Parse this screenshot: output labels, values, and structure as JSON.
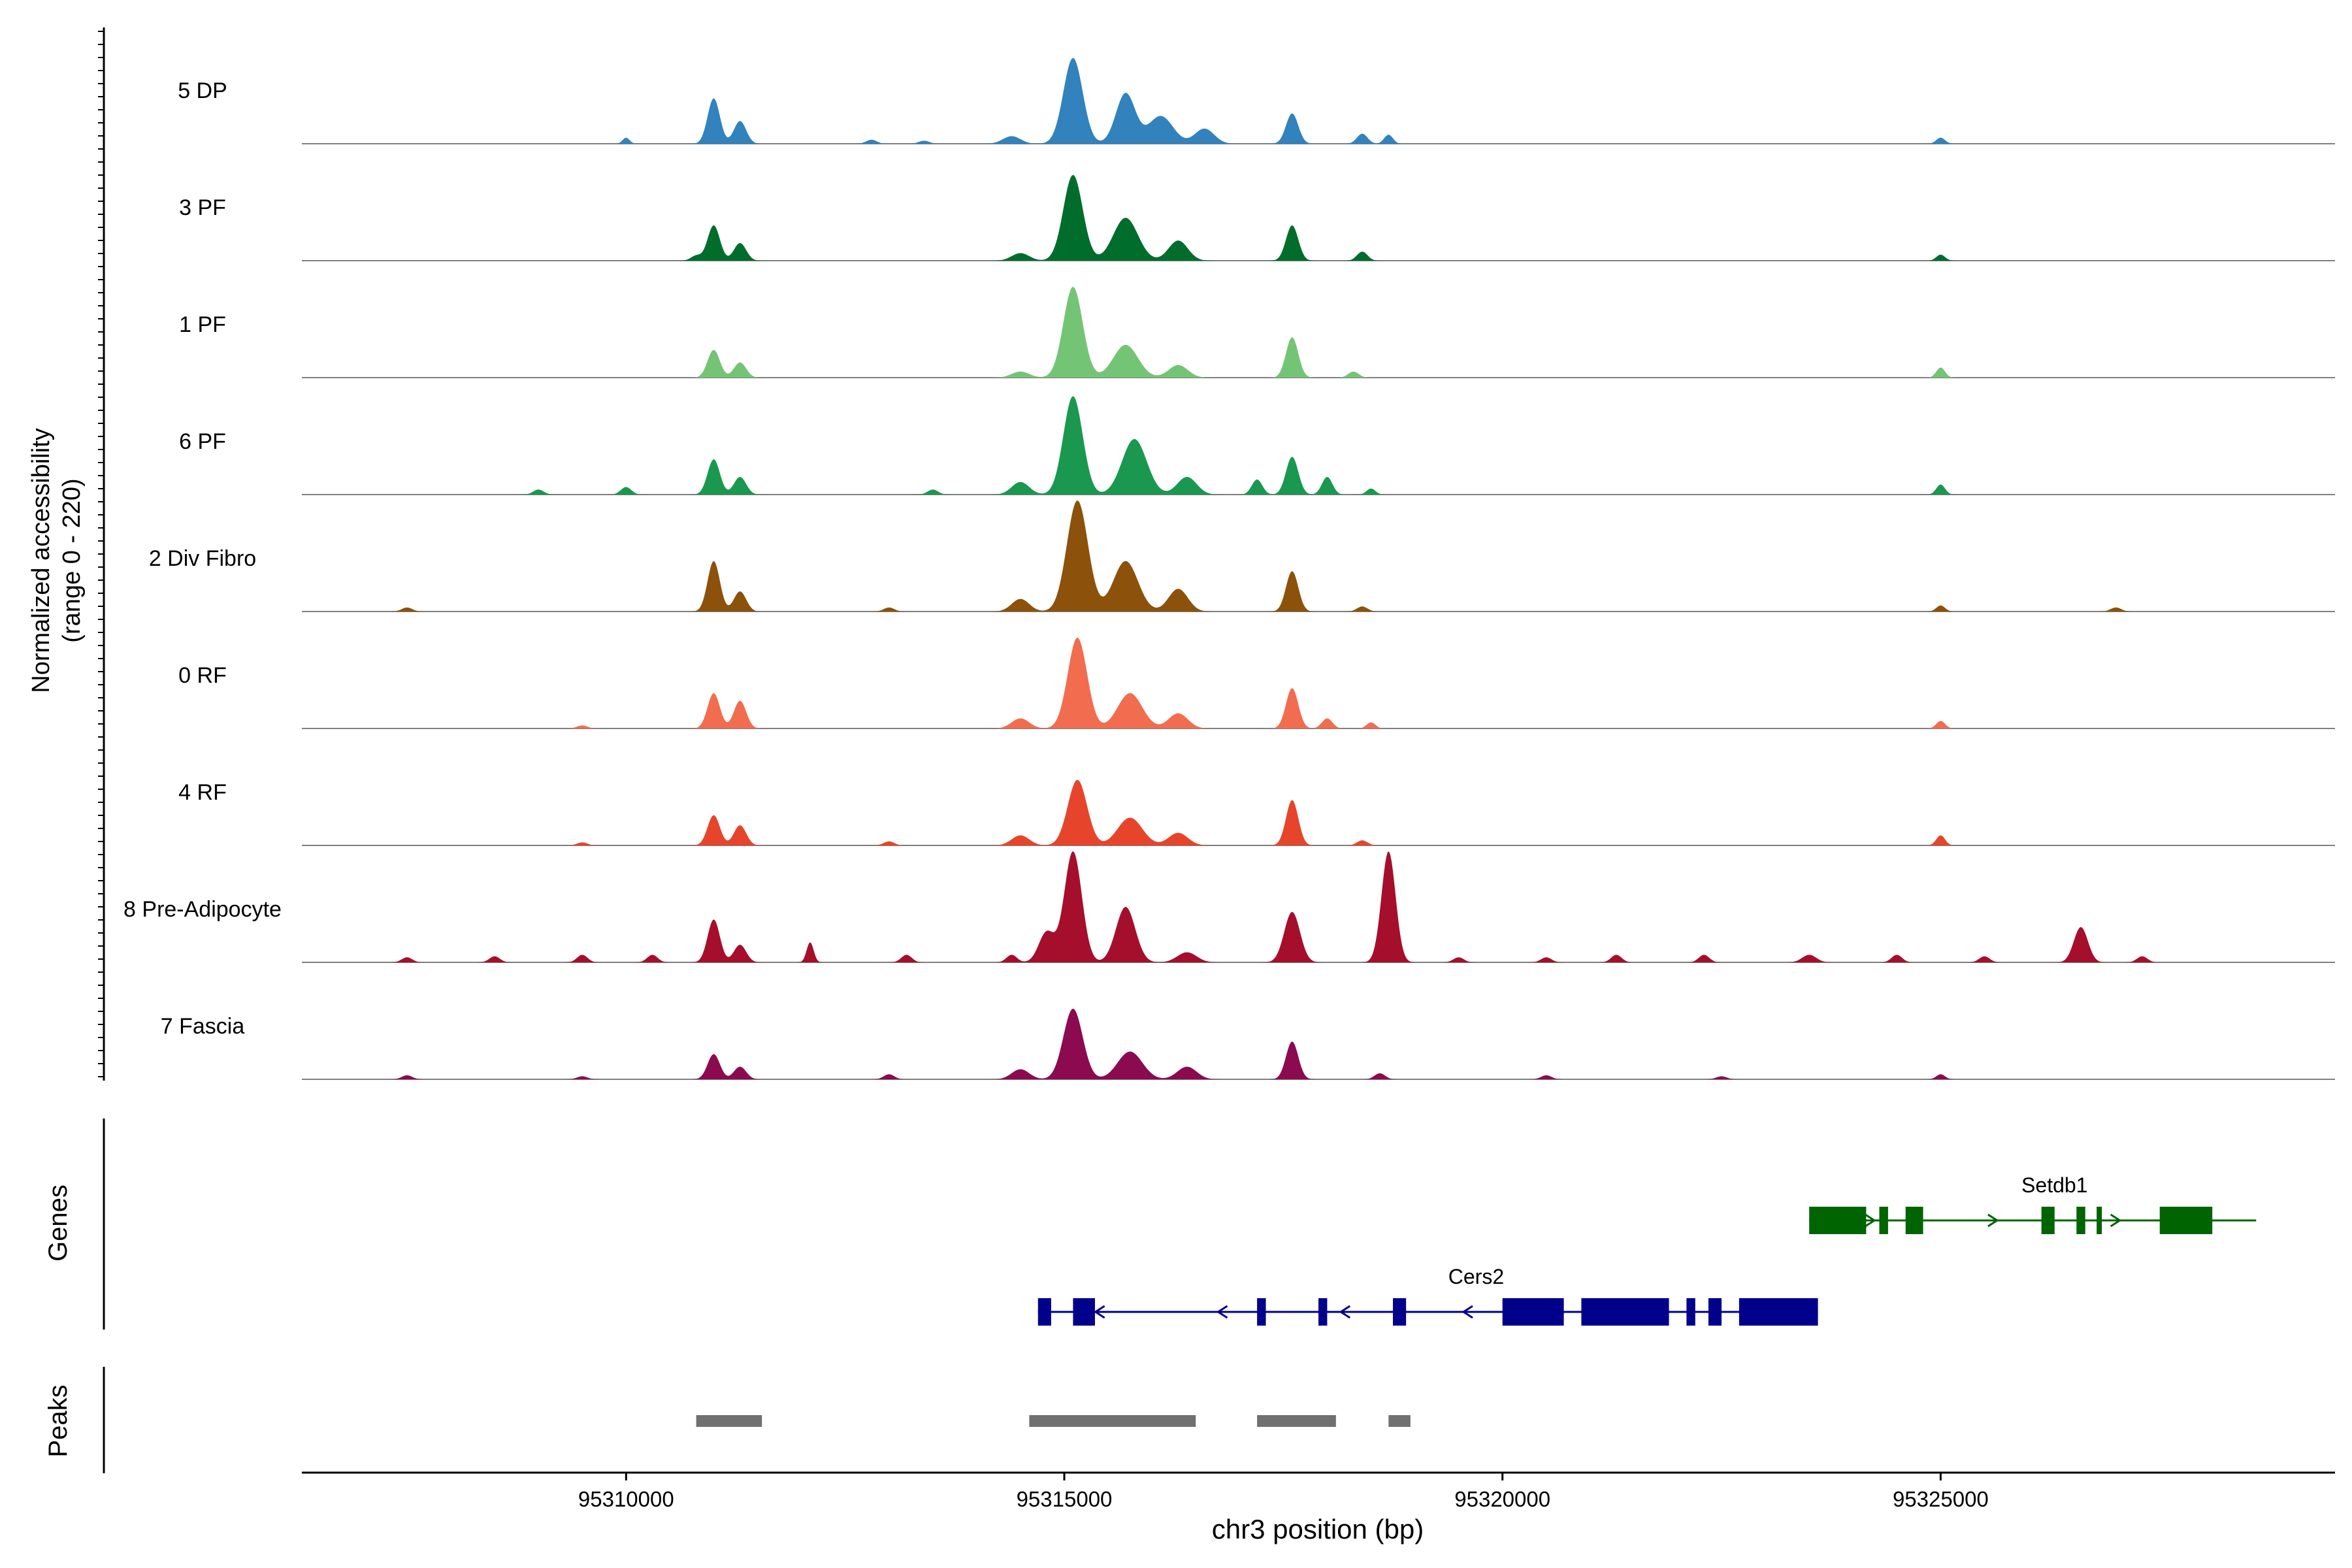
{
  "chart_data": {
    "type": "area",
    "title": "",
    "ylabel_line1": "Normalized accessibility",
    "ylabel_line2": "(range 0 - 220)",
    "yrange": [
      0,
      220
    ],
    "xlabel": "chr3 position (bp)",
    "xlim": [
      95306300,
      95329500
    ],
    "x_ticks": [
      95310000,
      95315000,
      95320000,
      95325000
    ],
    "x_tick_labels": [
      "95310000",
      "95315000",
      "95320000",
      "95325000"
    ],
    "track_labels": {
      "genes": "Genes",
      "peaks": "Peaks"
    },
    "series": [
      {
        "name": "5 DP",
        "color": "#3182BD",
        "peaks": [
          [
            95310000,
            12,
            40
          ],
          [
            95311000,
            90,
            70
          ],
          [
            95311300,
            45,
            70
          ],
          [
            95312800,
            8,
            60
          ],
          [
            95313400,
            6,
            60
          ],
          [
            95314400,
            15,
            100
          ],
          [
            95315100,
            170,
            110
          ],
          [
            95315700,
            100,
            110
          ],
          [
            95316100,
            55,
            140
          ],
          [
            95316600,
            30,
            110
          ],
          [
            95317600,
            60,
            70
          ],
          [
            95318400,
            20,
            60
          ],
          [
            95318700,
            18,
            50
          ],
          [
            95325000,
            12,
            50
          ]
        ]
      },
      {
        "name": "3 PF",
        "color": "#006D2C",
        "peaks": [
          [
            95310800,
            10,
            60
          ],
          [
            95311000,
            70,
            70
          ],
          [
            95311300,
            35,
            70
          ],
          [
            95314500,
            15,
            100
          ],
          [
            95315100,
            170,
            110
          ],
          [
            95315700,
            85,
            140
          ],
          [
            95316300,
            40,
            110
          ],
          [
            95317600,
            70,
            70
          ],
          [
            95318400,
            18,
            60
          ],
          [
            95325000,
            12,
            50
          ]
        ]
      },
      {
        "name": "1 PF",
        "color": "#74C476",
        "peaks": [
          [
            95311000,
            55,
            70
          ],
          [
            95311300,
            30,
            70
          ],
          [
            95314500,
            12,
            100
          ],
          [
            95315100,
            180,
            110
          ],
          [
            95315700,
            65,
            140
          ],
          [
            95316300,
            25,
            110
          ],
          [
            95317600,
            80,
            70
          ],
          [
            95318300,
            12,
            60
          ],
          [
            95325000,
            20,
            50
          ]
        ]
      },
      {
        "name": "6 PF",
        "color": "#1A9850",
        "peaks": [
          [
            95309000,
            10,
            60
          ],
          [
            95310000,
            15,
            60
          ],
          [
            95311000,
            70,
            70
          ],
          [
            95311300,
            35,
            70
          ],
          [
            95313500,
            10,
            60
          ],
          [
            95314500,
            25,
            100
          ],
          [
            95315100,
            195,
            110
          ],
          [
            95315800,
            110,
            140
          ],
          [
            95316400,
            35,
            110
          ],
          [
            95317200,
            30,
            60
          ],
          [
            95317600,
            75,
            70
          ],
          [
            95318000,
            35,
            60
          ],
          [
            95318500,
            12,
            50
          ],
          [
            95325000,
            20,
            50
          ]
        ]
      },
      {
        "name": "2 Div Fibro",
        "color": "#8C510A",
        "peaks": [
          [
            95307500,
            8,
            60
          ],
          [
            95311000,
            100,
            70
          ],
          [
            95311300,
            40,
            70
          ],
          [
            95313000,
            8,
            60
          ],
          [
            95314500,
            25,
            100
          ],
          [
            95315150,
            220,
            120
          ],
          [
            95315700,
            100,
            140
          ],
          [
            95316300,
            45,
            110
          ],
          [
            95317600,
            80,
            70
          ],
          [
            95318400,
            10,
            60
          ],
          [
            95325000,
            12,
            50
          ],
          [
            95327000,
            8,
            60
          ]
        ]
      },
      {
        "name": "0 RF",
        "color": "#F26C4F",
        "peaks": [
          [
            95309500,
            6,
            60
          ],
          [
            95311000,
            70,
            70
          ],
          [
            95311300,
            55,
            70
          ],
          [
            95314500,
            20,
            100
          ],
          [
            95315150,
            180,
            110
          ],
          [
            95315750,
            70,
            140
          ],
          [
            95316300,
            30,
            110
          ],
          [
            95317600,
            80,
            70
          ],
          [
            95318000,
            20,
            60
          ],
          [
            95318500,
            12,
            50
          ],
          [
            95325000,
            15,
            50
          ]
        ]
      },
      {
        "name": "4 RF",
        "color": "#E6452B",
        "peaks": [
          [
            95309500,
            6,
            60
          ],
          [
            95311000,
            60,
            70
          ],
          [
            95311300,
            40,
            70
          ],
          [
            95313000,
            8,
            60
          ],
          [
            95314500,
            20,
            100
          ],
          [
            95315150,
            130,
            110
          ],
          [
            95315750,
            55,
            140
          ],
          [
            95316300,
            25,
            110
          ],
          [
            95317600,
            90,
            70
          ],
          [
            95318400,
            10,
            60
          ],
          [
            95325000,
            20,
            50
          ]
        ]
      },
      {
        "name": "8 Pre-Adipocyte",
        "color": "#A50F2C",
        "peaks": [
          [
            95307500,
            10,
            60
          ],
          [
            95308500,
            12,
            60
          ],
          [
            95309500,
            15,
            60
          ],
          [
            95310300,
            15,
            60
          ],
          [
            95311000,
            85,
            70
          ],
          [
            95311300,
            35,
            70
          ],
          [
            95312100,
            40,
            40
          ],
          [
            95313200,
            15,
            60
          ],
          [
            95314400,
            15,
            60
          ],
          [
            95314800,
            60,
            90
          ],
          [
            95315100,
            220,
            100
          ],
          [
            95315700,
            110,
            110
          ],
          [
            95316400,
            20,
            110
          ],
          [
            95317600,
            100,
            90
          ],
          [
            95318700,
            220,
            80
          ],
          [
            95319500,
            10,
            60
          ],
          [
            95320500,
            10,
            60
          ],
          [
            95321300,
            15,
            60
          ],
          [
            95322300,
            15,
            60
          ],
          [
            95323500,
            15,
            80
          ],
          [
            95324500,
            15,
            60
          ],
          [
            95325500,
            12,
            60
          ],
          [
            95326600,
            70,
            80
          ],
          [
            95327300,
            12,
            60
          ]
        ]
      },
      {
        "name": "7 Fascia",
        "color": "#8B0A50",
        "peaks": [
          [
            95307500,
            8,
            60
          ],
          [
            95309500,
            6,
            60
          ],
          [
            95311000,
            50,
            70
          ],
          [
            95311300,
            25,
            70
          ],
          [
            95313000,
            10,
            60
          ],
          [
            95314500,
            20,
            100
          ],
          [
            95315100,
            140,
            110
          ],
          [
            95315750,
            55,
            140
          ],
          [
            95316400,
            25,
            110
          ],
          [
            95317600,
            75,
            70
          ],
          [
            95318600,
            12,
            60
          ],
          [
            95320500,
            8,
            60
          ],
          [
            95322500,
            6,
            60
          ],
          [
            95325000,
            10,
            50
          ]
        ]
      }
    ],
    "genes": [
      {
        "name": "Setdb1",
        "strand": "+",
        "color": "#006400",
        "start": 95323500,
        "end": 95328600,
        "exons": [
          [
            95323500,
            95324150
          ],
          [
            95324300,
            95324400
          ],
          [
            95324600,
            95324800
          ],
          [
            95326150,
            95326300
          ],
          [
            95326550,
            95326650
          ],
          [
            95326780,
            95326800
          ],
          [
            95327500,
            95328100
          ]
        ]
      },
      {
        "name": "Cers2",
        "strand": "-",
        "color": "#00008B",
        "start": 95314700,
        "end": 95323600,
        "exons": [
          [
            95314700,
            95314850
          ],
          [
            95315100,
            95315350
          ],
          [
            95317200,
            95317300
          ],
          [
            95317900,
            95318000
          ],
          [
            95318750,
            95318900
          ],
          [
            95320000,
            95320700
          ],
          [
            95320900,
            95321900
          ],
          [
            95322100,
            95322200
          ],
          [
            95322350,
            95322500
          ],
          [
            95322700,
            95323600
          ]
        ]
      }
    ],
    "peaks": [
      [
        95310800,
        95311550
      ],
      [
        95314600,
        95316500
      ],
      [
        95317200,
        95318100
      ],
      [
        95318700,
        95318950
      ]
    ]
  }
}
